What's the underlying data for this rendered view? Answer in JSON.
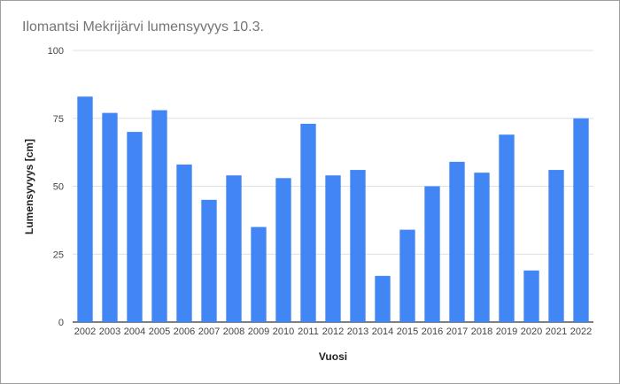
{
  "chart_data": {
    "type": "bar",
    "title": "Ilomantsi Mekrijärvi lumensyvyys 10.3.",
    "xlabel": "Vuosi",
    "ylabel": "Lumensyvyys [cm]",
    "ylim": [
      0,
      100
    ],
    "yticks": [
      "0",
      "25",
      "50",
      "75",
      "100"
    ],
    "grid": true,
    "legend": "none",
    "categories": [
      "2002",
      "2003",
      "2004",
      "2005",
      "2006",
      "2007",
      "2008",
      "2009",
      "2010",
      "2011",
      "2012",
      "2013",
      "2014",
      "2015",
      "2016",
      "2017",
      "2018",
      "2019",
      "2020",
      "2021",
      "2022"
    ],
    "values": [
      83,
      77,
      70,
      78,
      58,
      45,
      54,
      35,
      53,
      73,
      54,
      56,
      17,
      34,
      50,
      59,
      55,
      69,
      19,
      56,
      75
    ],
    "colors": {
      "bar": "#4285f4",
      "grid": "#e0e0e0",
      "baseline": "#333333"
    }
  }
}
